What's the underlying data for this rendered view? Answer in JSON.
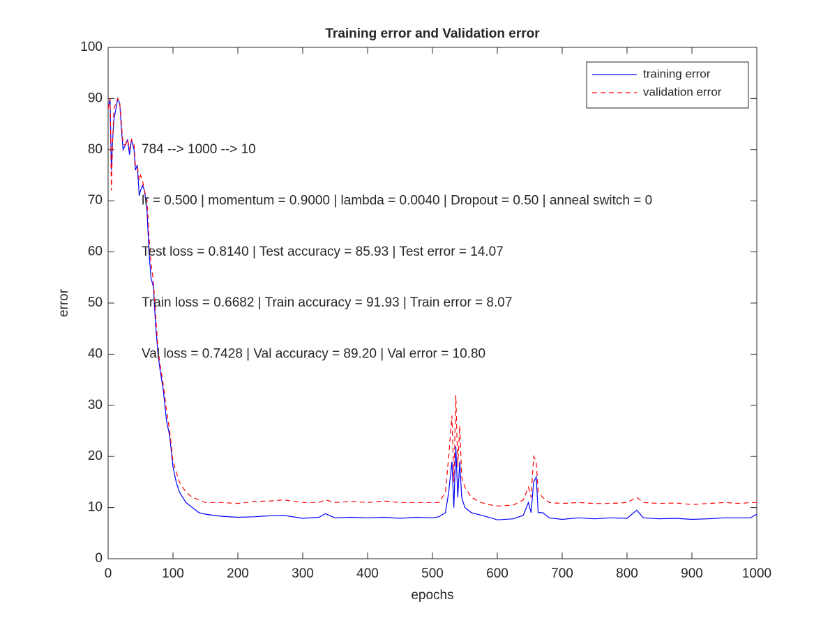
{
  "chart_data": {
    "type": "line",
    "title": "Training error and Validation error",
    "x_label": "epochs",
    "y_label": "error",
    "x": [
      0,
      3,
      5,
      7,
      9,
      12,
      15,
      18,
      20,
      23,
      27,
      30,
      33,
      36,
      40,
      42,
      45,
      48,
      50,
      53,
      56,
      60,
      63,
      66,
      70,
      73,
      77,
      80,
      85,
      90,
      95,
      100,
      105,
      110,
      120,
      130,
      140,
      150,
      175,
      200,
      225,
      250,
      270,
      300,
      325,
      335,
      350,
      375,
      400,
      425,
      450,
      475,
      500,
      510,
      520,
      525,
      530,
      533,
      536,
      539,
      542,
      545,
      550,
      560,
      575,
      590,
      600,
      625,
      640,
      648,
      652,
      656,
      660,
      663,
      670,
      680,
      700,
      725,
      750,
      775,
      800,
      815,
      825,
      850,
      875,
      900,
      925,
      950,
      975,
      990,
      1000
    ],
    "series": [
      {
        "name": "training error",
        "color": "#0000ff",
        "line_style": "solid",
        "values": [
          88,
          90,
          76,
          82,
          86,
          88,
          90,
          89,
          85,
          80,
          81,
          82,
          79,
          82,
          80,
          76,
          77,
          71,
          72,
          73,
          72,
          68,
          60,
          55,
          53,
          46,
          40,
          37,
          33,
          27,
          24,
          18,
          15,
          13,
          11,
          10,
          9,
          8.7,
          8.3,
          8.1,
          8.2,
          8.4,
          8.5,
          7.9,
          8.1,
          8.8,
          8,
          8.1,
          8,
          8.1,
          7.9,
          8.1,
          8,
          8.2,
          9,
          13,
          19,
          10,
          22,
          12,
          19,
          12,
          10,
          9,
          8.5,
          8,
          7.6,
          7.8,
          8.5,
          11,
          9,
          15,
          16,
          9,
          9,
          8,
          7.7,
          8,
          7.8,
          8,
          7.9,
          9.5,
          8,
          7.8,
          7.9,
          7.7,
          7.8,
          8,
          8,
          8,
          8.7
        ]
      },
      {
        "name": "validation error",
        "color": "#ff0000",
        "line_style": "dashed",
        "values": [
          88,
          90,
          72,
          82,
          88,
          89,
          90,
          89,
          86,
          81,
          81,
          82,
          80,
          82,
          81,
          77,
          77,
          74,
          75,
          74,
          72,
          70,
          63,
          58,
          54,
          48,
          41,
          38,
          34,
          29,
          25,
          19,
          17,
          15,
          13,
          12,
          11.5,
          11,
          11,
          10.8,
          11.2,
          11.3,
          11.5,
          11,
          11,
          11.5,
          11,
          11.2,
          11,
          11.3,
          11,
          11,
          11,
          11,
          13,
          20,
          28,
          15,
          32,
          18,
          26,
          16,
          14,
          12,
          11,
          10.5,
          10.3,
          10.5,
          11.5,
          14,
          12,
          20,
          19,
          13,
          12,
          11,
          10.8,
          11,
          10.8,
          10.8,
          11,
          12,
          11,
          10.8,
          10.9,
          10.6,
          10.8,
          11,
          10.8,
          11,
          11
        ]
      }
    ],
    "annotations": [
      "784 --> 1000 --> 10",
      "lr = 0.500 | momentum = 0.9000 | lambda = 0.0040 | Dropout = 0.50 | anneal switch = 0",
      "Test loss = 0.8140 | Test accuracy = 85.93 | Test error = 14.07",
      "Train loss = 0.6682 | Train accuracy = 91.93 | Train error = 8.07",
      "Val loss = 0.7428 | Val accuracy = 89.20 | Val error = 10.80"
    ],
    "xlim": [
      0,
      1000
    ],
    "xticks": [
      0,
      100,
      200,
      300,
      400,
      500,
      600,
      700,
      800,
      900,
      1000
    ],
    "ylim": [
      0,
      100
    ],
    "yticks": [
      0,
      10,
      20,
      30,
      40,
      50,
      60,
      70,
      80,
      90,
      100
    ],
    "grid": false,
    "legend": "northeast"
  }
}
